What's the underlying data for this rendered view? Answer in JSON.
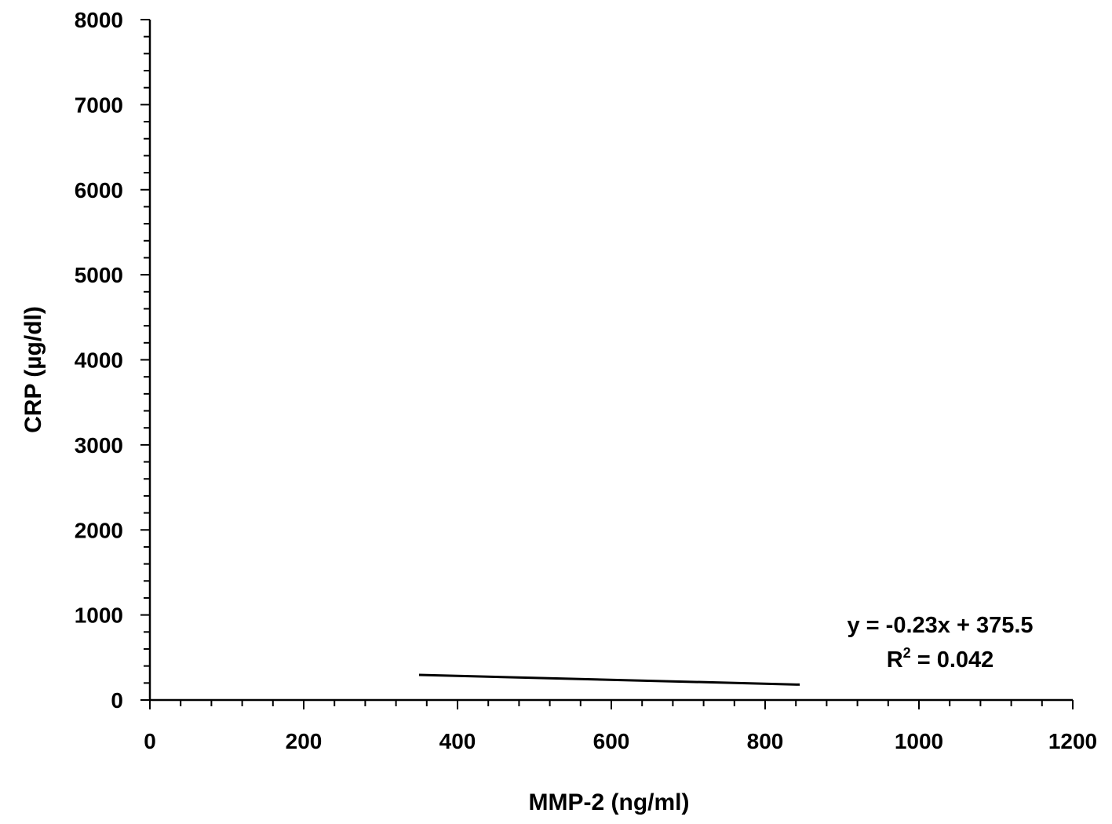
{
  "chart_data": {
    "type": "scatter",
    "title": "",
    "xlabel": "MMP-2 (ng/ml)",
    "ylabel": "CRP (µg/dl)",
    "xlim": [
      0,
      1200
    ],
    "ylim": [
      0,
      8000
    ],
    "x_ticks": [
      0,
      200,
      400,
      600,
      800,
      1000,
      1200
    ],
    "y_ticks": [
      0,
      1000,
      2000,
      3000,
      4000,
      5000,
      6000,
      7000,
      8000
    ],
    "x_minor_step": 40,
    "y_minor_step": 200,
    "grid": false,
    "series": [
      {
        "type": "trendline",
        "slope": -0.23,
        "intercept": 375.5,
        "x_range": [
          350,
          845
        ]
      }
    ],
    "annotations": {
      "equation": "y = -0.23x + 375.5",
      "r2_label": "R",
      "r2_sup": "2",
      "r2_value": " = 0.042"
    },
    "colors": {
      "axis": "#000000",
      "trendline": "#000000"
    }
  }
}
